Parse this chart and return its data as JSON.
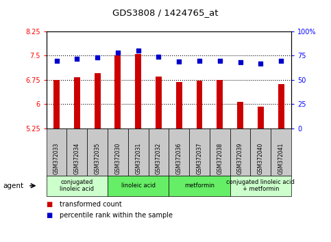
{
  "title": "GDS3808 / 1424765_at",
  "samples": [
    "GSM372033",
    "GSM372034",
    "GSM372035",
    "GSM372030",
    "GSM372031",
    "GSM372032",
    "GSM372036",
    "GSM372037",
    "GSM372038",
    "GSM372039",
    "GSM372040",
    "GSM372041"
  ],
  "transformed_count": [
    6.75,
    6.83,
    6.95,
    7.5,
    7.56,
    6.85,
    6.68,
    6.72,
    6.75,
    6.07,
    5.93,
    6.62
  ],
  "percentile_rank": [
    70,
    72,
    73,
    78,
    80,
    74,
    69,
    70,
    70,
    68,
    67,
    70
  ],
  "ylim_left": [
    5.25,
    8.25
  ],
  "ylim_right": [
    0,
    100
  ],
  "yticks_left": [
    5.25,
    6.0,
    6.75,
    7.5,
    8.25
  ],
  "yticks_right": [
    0,
    25,
    50,
    75,
    100
  ],
  "ytick_labels_left": [
    "5.25",
    "6",
    "6.75",
    "7.5",
    "8.25"
  ],
  "ytick_labels_right": [
    "0",
    "25",
    "50",
    "75",
    "100%"
  ],
  "bar_color": "#cc0000",
  "dot_color": "#0000cc",
  "agent_groups": [
    {
      "label": "conjugated\nlinoleic acid",
      "start": 0,
      "end": 3,
      "color": "#ccffcc"
    },
    {
      "label": "linoleic acid",
      "start": 3,
      "end": 6,
      "color": "#66ee66"
    },
    {
      "label": "metformin",
      "start": 6,
      "end": 9,
      "color": "#66ee66"
    },
    {
      "label": "conjugated linoleic acid\n+ metformin",
      "start": 9,
      "end": 12,
      "color": "#ccffcc"
    }
  ],
  "legend_items": [
    {
      "label": "transformed count",
      "color": "#cc0000"
    },
    {
      "label": "percentile rank within the sample",
      "color": "#0000cc"
    }
  ],
  "bg_color_xticklabel": "#c8c8c8"
}
